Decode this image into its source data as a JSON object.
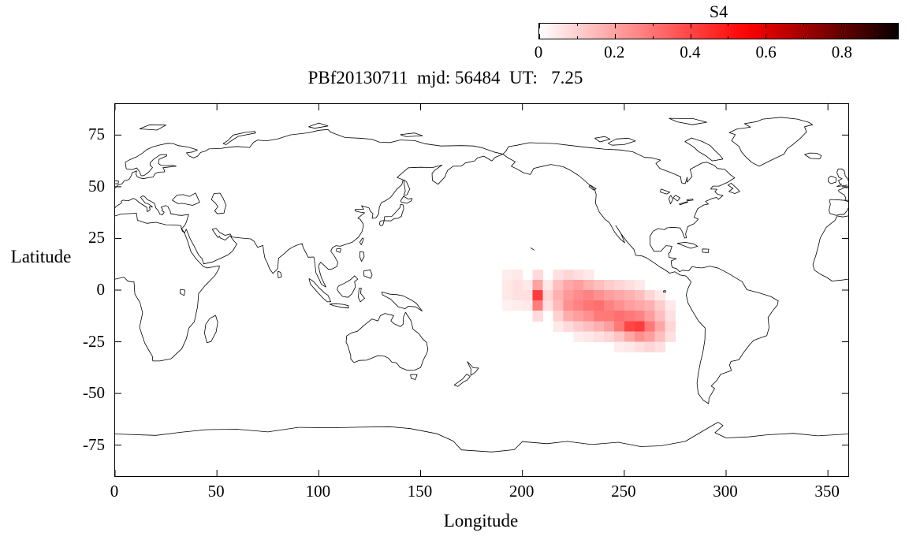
{
  "figure": {
    "title": "PBf20130711  mjd: 56484  UT:   7.25",
    "xlabel": "Longitude",
    "ylabel": "Latitude",
    "colorbar_label": "S4"
  },
  "chart_data": {
    "type": "heatmap",
    "title": "PBf20130711  mjd: 56484  UT:   7.25",
    "xlabel": "Longitude",
    "ylabel": "Latitude",
    "xlim": [
      0,
      360
    ],
    "ylim": [
      -90,
      90
    ],
    "x_ticks": [
      0,
      50,
      100,
      150,
      200,
      250,
      300,
      350
    ],
    "y_ticks": [
      75,
      50,
      25,
      0,
      -25,
      -50,
      -75
    ],
    "grid": false,
    "basemap": "world coastlines, equirectangular projection, longitude 0-360 (Greenwich at left edge)",
    "colorbar": {
      "label": "S4",
      "min": 0,
      "max": 0.95,
      "major_ticks": [
        0,
        0.2,
        0.4,
        0.6,
        0.8
      ],
      "minor_tick_step": 0.1,
      "palette": "white to red to black",
      "position": "top right, horizontal"
    },
    "cell_size_deg": 5,
    "cell_format": [
      "lon_west",
      "lat_north",
      "s4_value"
    ],
    "cells": [
      [
        190,
        10,
        0.04
      ],
      [
        190,
        5,
        0.05
      ],
      [
        190,
        0,
        0.05
      ],
      [
        190,
        -5,
        0.03
      ],
      [
        195,
        10,
        0.05
      ],
      [
        195,
        5,
        0.07
      ],
      [
        195,
        0,
        0.07
      ],
      [
        195,
        -5,
        0.04
      ],
      [
        200,
        5,
        0.05
      ],
      [
        200,
        0,
        0.07
      ],
      [
        200,
        -5,
        0.05
      ],
      [
        205,
        10,
        0.08
      ],
      [
        205,
        5,
        0.2
      ],
      [
        205,
        0,
        0.42
      ],
      [
        205,
        -5,
        0.28
      ],
      [
        205,
        -10,
        0.08
      ],
      [
        210,
        5,
        0.05
      ],
      [
        210,
        0,
        0.09
      ],
      [
        210,
        -5,
        0.07
      ],
      [
        215,
        10,
        0.07
      ],
      [
        215,
        5,
        0.14
      ],
      [
        215,
        0,
        0.17
      ],
      [
        215,
        -5,
        0.15
      ],
      [
        215,
        -10,
        0.1
      ],
      [
        215,
        -15,
        0.05
      ],
      [
        220,
        10,
        0.09
      ],
      [
        220,
        5,
        0.19
      ],
      [
        220,
        0,
        0.22
      ],
      [
        220,
        -5,
        0.24
      ],
      [
        220,
        -10,
        0.18
      ],
      [
        220,
        -15,
        0.08
      ],
      [
        225,
        10,
        0.07
      ],
      [
        225,
        5,
        0.21
      ],
      [
        225,
        0,
        0.25
      ],
      [
        225,
        -5,
        0.27
      ],
      [
        225,
        -10,
        0.21
      ],
      [
        225,
        -15,
        0.11
      ],
      [
        225,
        -20,
        0.04
      ],
      [
        230,
        10,
        0.05
      ],
      [
        230,
        5,
        0.17
      ],
      [
        230,
        0,
        0.27
      ],
      [
        230,
        -5,
        0.3
      ],
      [
        230,
        -10,
        0.24
      ],
      [
        230,
        -15,
        0.14
      ],
      [
        230,
        -20,
        0.05
      ],
      [
        235,
        5,
        0.14
      ],
      [
        235,
        0,
        0.24
      ],
      [
        235,
        -5,
        0.31
      ],
      [
        235,
        -10,
        0.29
      ],
      [
        235,
        -15,
        0.17
      ],
      [
        235,
        -20,
        0.07
      ],
      [
        240,
        5,
        0.11
      ],
      [
        240,
        0,
        0.21
      ],
      [
        240,
        -5,
        0.27
      ],
      [
        240,
        -10,
        0.29
      ],
      [
        240,
        -15,
        0.21
      ],
      [
        240,
        -20,
        0.09
      ],
      [
        245,
        5,
        0.09
      ],
      [
        245,
        0,
        0.19
      ],
      [
        245,
        -5,
        0.24
      ],
      [
        245,
        -10,
        0.31
      ],
      [
        245,
        -15,
        0.29
      ],
      [
        245,
        -20,
        0.13
      ],
      [
        245,
        -25,
        0.04
      ],
      [
        250,
        5,
        0.07
      ],
      [
        250,
        0,
        0.17
      ],
      [
        250,
        -5,
        0.21
      ],
      [
        250,
        -10,
        0.29
      ],
      [
        250,
        -15,
        0.4
      ],
      [
        250,
        -20,
        0.19
      ],
      [
        250,
        -25,
        0.05
      ],
      [
        255,
        5,
        0.05
      ],
      [
        255,
        0,
        0.14
      ],
      [
        255,
        -5,
        0.19
      ],
      [
        255,
        -10,
        0.27
      ],
      [
        255,
        -15,
        0.42
      ],
      [
        255,
        -20,
        0.24
      ],
      [
        255,
        -25,
        0.07
      ],
      [
        260,
        0,
        0.09
      ],
      [
        260,
        -5,
        0.17
      ],
      [
        260,
        -10,
        0.21
      ],
      [
        260,
        -15,
        0.29
      ],
      [
        260,
        -20,
        0.21
      ],
      [
        260,
        -25,
        0.09
      ],
      [
        265,
        0,
        0.05
      ],
      [
        265,
        -5,
        0.11
      ],
      [
        265,
        -10,
        0.14
      ],
      [
        265,
        -15,
        0.19
      ],
      [
        265,
        -20,
        0.14
      ],
      [
        265,
        -25,
        0.07
      ],
      [
        270,
        -5,
        0.05
      ],
      [
        270,
        -10,
        0.07
      ],
      [
        270,
        -15,
        0.09
      ],
      [
        270,
        -20,
        0.07
      ]
    ]
  }
}
